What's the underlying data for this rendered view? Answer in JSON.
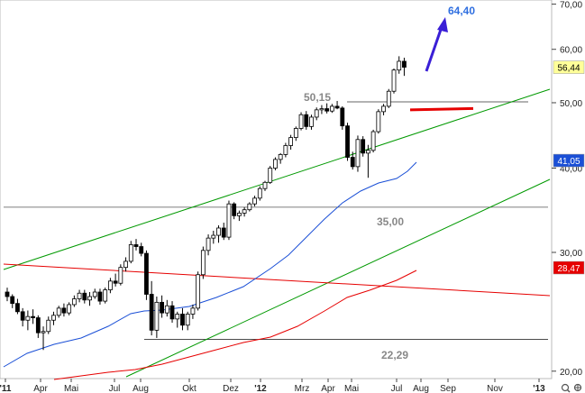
{
  "chart_data": {
    "type": "candlestick",
    "y_scale": "log",
    "ylim": [
      19.5,
      71
    ],
    "y_ticks": [
      20,
      30,
      40,
      50,
      60,
      70
    ],
    "y_tick_labels": [
      "20,00",
      "30,00",
      "40,00",
      "50,00",
      "60,00",
      "70,00"
    ],
    "x_tick_labels": [
      "'11",
      "Apr",
      "Mai",
      "Jul",
      "Aug",
      "Okt",
      "Dez",
      "'12",
      "Mrz",
      "Apr",
      "Mai",
      "Jul",
      "Aug",
      "Sep",
      "Nov",
      "'13"
    ],
    "price_markers": [
      {
        "label": "56,44",
        "value": 56.44,
        "color": "#ffff99"
      },
      {
        "label": "41,05",
        "value": 41.05,
        "color": "#1a4fd6"
      },
      {
        "label": "28,47",
        "value": 28.47,
        "color": "#e60000"
      }
    ],
    "horizontal_levels": [
      {
        "label": "50,15",
        "value": 50.15
      },
      {
        "label": "35,00",
        "value": 35.0
      },
      {
        "label": "22,29",
        "value": 22.29
      }
    ],
    "target": {
      "label": "64,40",
      "value": 64.4
    },
    "target_value": 48.8,
    "corner_icons": [
      "zoom-icon",
      "crosshair-icon"
    ],
    "colors": {
      "ma_fast": "#1a4fd6",
      "ma_slow": "#e60000",
      "trend_channel": "#009900",
      "downtrend": "#e60000",
      "arrow": "#3a1fd6",
      "label_grey": "#888888"
    }
  }
}
